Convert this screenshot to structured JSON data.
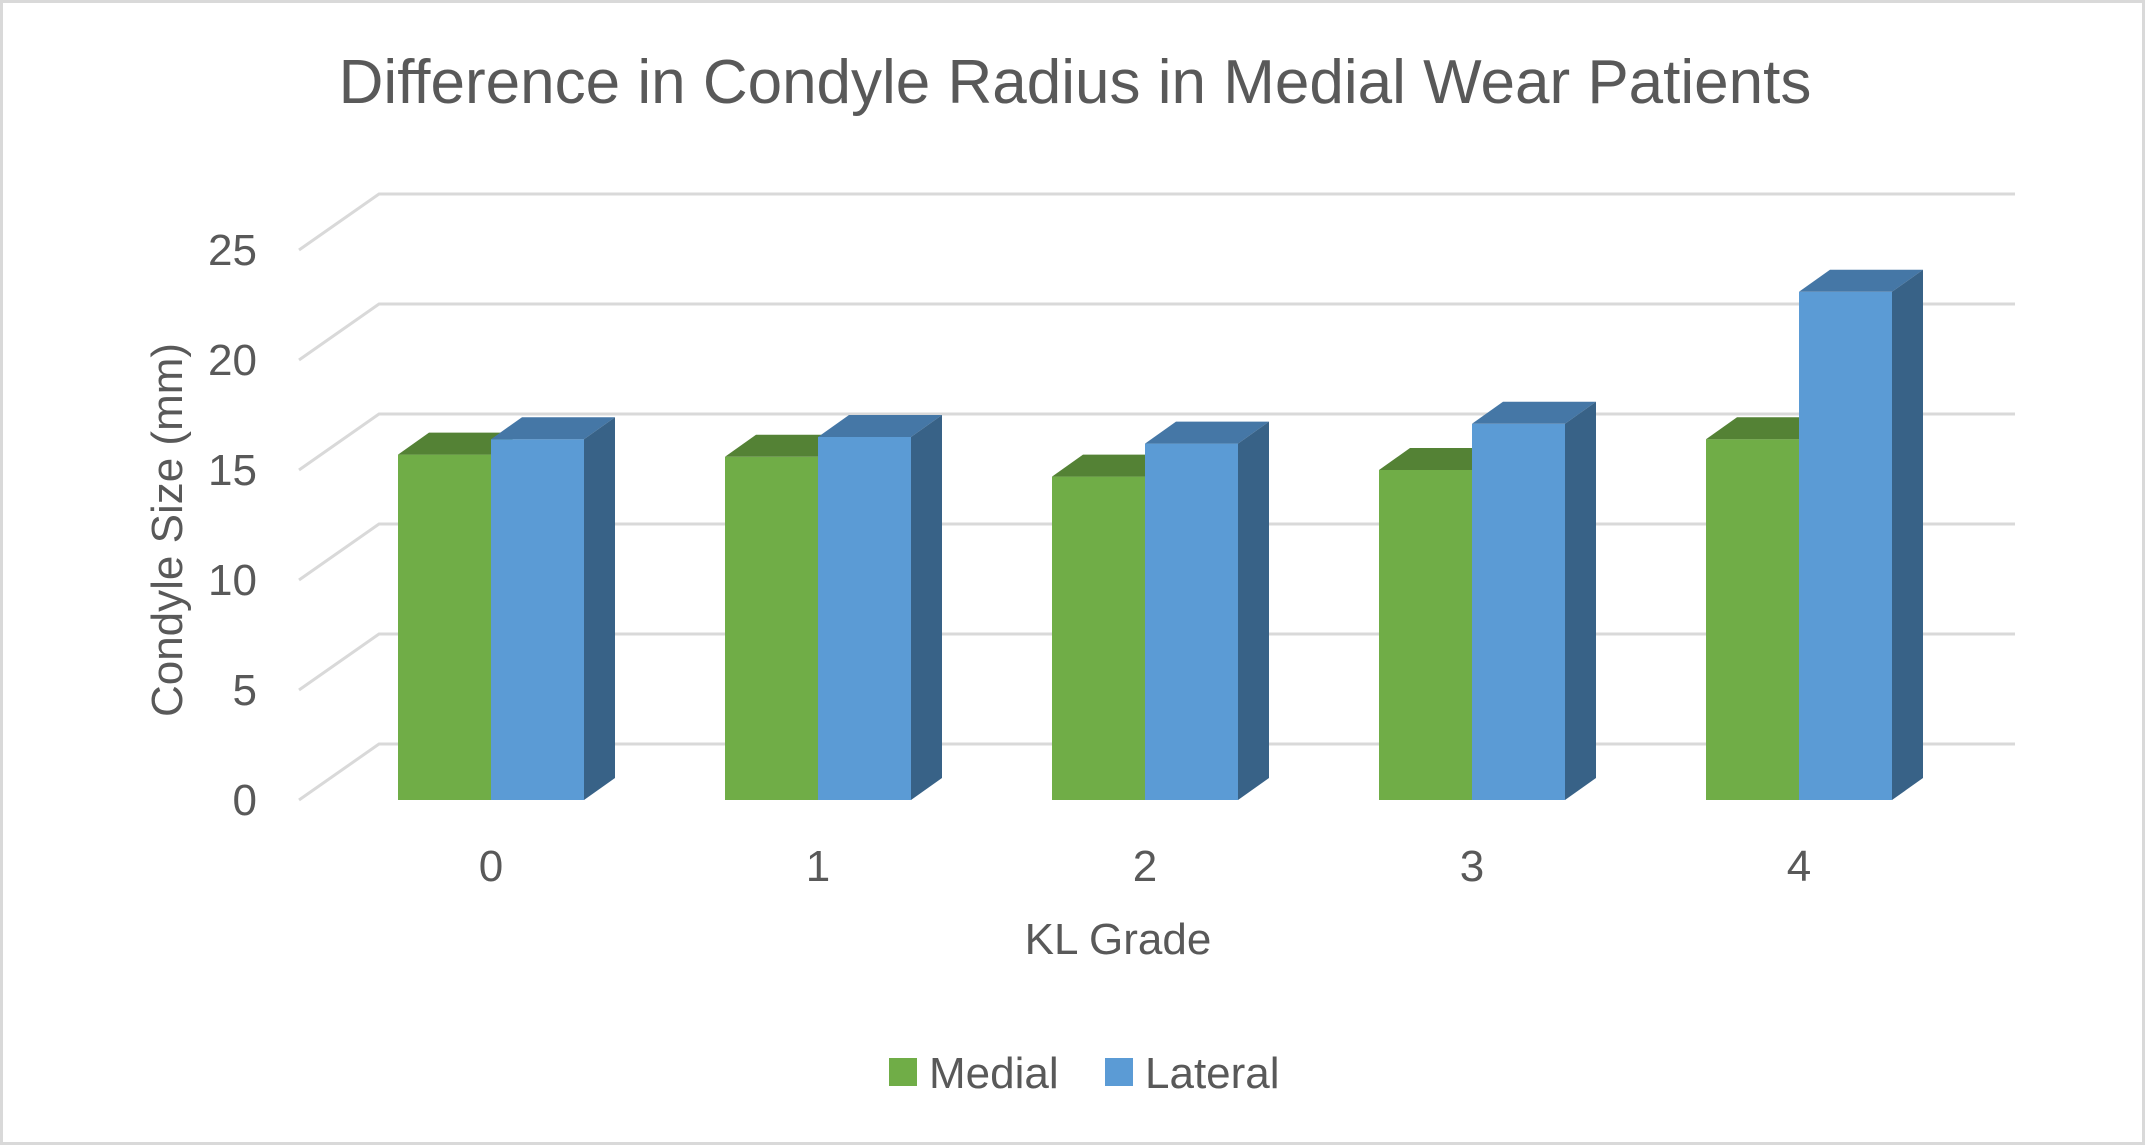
{
  "chart_data": {
    "type": "bar",
    "title": "Difference in Condyle Radius in Medial Wear Patients",
    "xlabel": "KL Grade",
    "ylabel": "Condyle Size (mm)",
    "categories": [
      "0",
      "1",
      "2",
      "3",
      "4"
    ],
    "yticks": [
      "0",
      "5",
      "10",
      "15",
      "20",
      "25"
    ],
    "ylim": [
      0,
      25
    ],
    "grid": true,
    "legend_position": "bottom",
    "series": [
      {
        "name": "Medial",
        "values": [
          15.7,
          15.6,
          14.7,
          15.0,
          16.4
        ],
        "color": "#70ad47",
        "top_color": "#548235",
        "side_color": "#4e7a30"
      },
      {
        "name": "Lateral",
        "values": [
          16.4,
          16.5,
          16.2,
          17.1,
          23.1
        ],
        "color": "#5b9bd5",
        "top_color": "#4577a6",
        "side_color": "#386287"
      }
    ]
  }
}
